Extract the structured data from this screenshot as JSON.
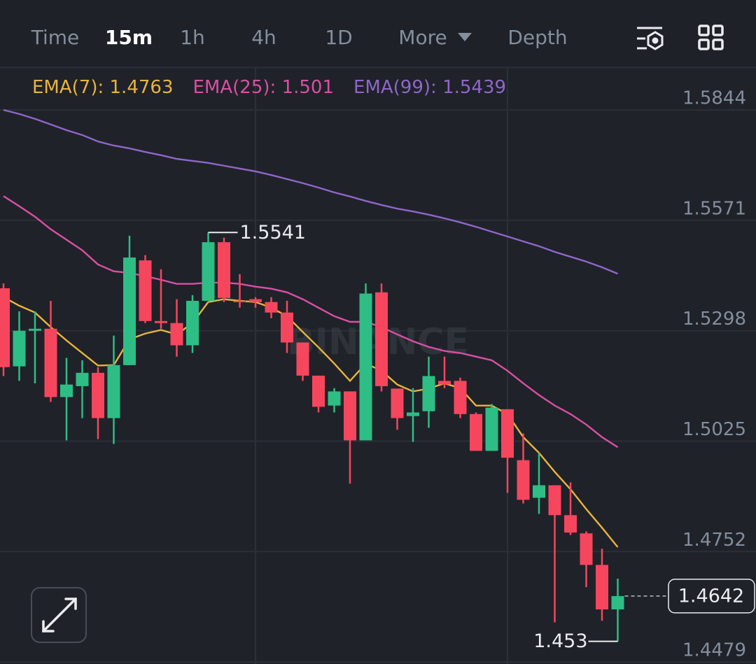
{
  "tabs": {
    "items": [
      "Time",
      "15m",
      "1h",
      "4h",
      "1D",
      "More",
      "Depth"
    ],
    "active": "15m"
  },
  "chart_data": {
    "type": "candlestick",
    "watermark": "BINANCE",
    "up_color": "#2ebd85",
    "down_color": "#f6465d",
    "grid": true,
    "ylim": [
      1.4474,
      1.5948
    ],
    "yticks": [
      1.5844,
      1.5571,
      1.5298,
      1.5025,
      1.4752,
      1.4479
    ],
    "open": [
      1.5403,
      1.521,
      1.5298,
      1.5303,
      1.5134,
      1.5161,
      1.5194,
      1.5082,
      1.5213,
      1.5472,
      1.5322,
      1.5317,
      1.5262,
      1.5372,
      1.5517,
      1.5372,
      1.5376,
      1.5369,
      1.5343,
      1.5269,
      1.5187,
      1.5113,
      1.5148,
      1.5027,
      1.5393,
      1.5155,
      1.5087,
      1.5099,
      1.5174,
      1.5174,
      1.5092,
      1.5001,
      1.5104,
      1.4978,
      1.4885,
      1.4916,
      1.4842,
      1.4797,
      1.4719,
      1.4609
    ],
    "high": [
      1.5415,
      1.5346,
      1.5346,
      1.5372,
      1.5231,
      1.5225,
      1.5208,
      1.5286,
      1.5533,
      1.5485,
      1.545,
      1.5376,
      1.5386,
      1.5541,
      1.5528,
      1.5438,
      1.5381,
      1.5381,
      1.5372,
      1.5269,
      1.5187,
      1.5156,
      1.5148,
      1.5415,
      1.5415,
      1.5155,
      1.5156,
      1.5234,
      1.5234,
      1.5182,
      1.5096,
      1.5117,
      1.5104,
      1.5044,
      1.4996,
      1.4916,
      1.4923,
      1.4802,
      1.4759,
      1.4685
    ],
    "low": [
      1.5186,
      1.5174,
      1.5168,
      1.5122,
      1.5027,
      1.5082,
      1.503,
      1.5018,
      1.5213,
      1.5317,
      1.5303,
      1.5234,
      1.5243,
      1.5372,
      1.5369,
      1.5355,
      1.5355,
      1.5329,
      1.5243,
      1.5174,
      1.5096,
      1.5096,
      1.492,
      1.5027,
      1.5148,
      1.5053,
      1.5023,
      1.5058,
      1.5156,
      1.5082,
      1.5001,
      1.5001,
      1.4897,
      1.4871,
      1.4845,
      1.4577,
      1.4793,
      1.4664,
      1.4581,
      1.453
    ],
    "close": [
      1.5208,
      1.5298,
      1.5303,
      1.5134,
      1.5165,
      1.5194,
      1.5082,
      1.5213,
      1.5479,
      1.5322,
      1.5317,
      1.5262,
      1.5372,
      1.5517,
      1.5379,
      1.5369,
      1.5369,
      1.5343,
      1.5269,
      1.5187,
      1.511,
      1.5148,
      1.5027,
      1.539,
      1.5161,
      1.5082,
      1.5096,
      1.5186,
      1.5165,
      1.5092,
      1.5001,
      1.5108,
      1.4984,
      1.488,
      1.4916,
      1.4842,
      1.4799,
      1.4719,
      1.4609,
      1.4642
    ],
    "series": [
      {
        "name": "EMA(7)",
        "color": "#e9b43c",
        "values": [
          1.5381,
          1.536,
          1.5343,
          1.5307,
          1.5274,
          1.5243,
          1.5212,
          1.5213,
          1.5277,
          1.5291,
          1.53,
          1.5289,
          1.5317,
          1.5369,
          1.5376,
          1.5372,
          1.5369,
          1.5355,
          1.5334,
          1.5295,
          1.5257,
          1.5217,
          1.5174,
          1.5217,
          1.5199,
          1.5165,
          1.5148,
          1.5155,
          1.5168,
          1.5156,
          1.5113,
          1.5113,
          1.5092,
          1.5035,
          1.4996,
          1.4949,
          1.4906,
          1.4857,
          1.4811,
          1.4763
        ]
      },
      {
        "name": "EMA(25)",
        "color": "#d94fa3",
        "values": [
          1.5631,
          1.5606,
          1.558,
          1.5549,
          1.5523,
          1.5497,
          1.5462,
          1.5445,
          1.5441,
          1.5433,
          1.5424,
          1.5414,
          1.5414,
          1.5417,
          1.5417,
          1.5414,
          1.5407,
          1.5402,
          1.5393,
          1.5376,
          1.5355,
          1.5334,
          1.532,
          1.532,
          1.5307,
          1.5289,
          1.5272,
          1.5258,
          1.5248,
          1.5243,
          1.5234,
          1.5225,
          1.5199,
          1.5168,
          1.5139,
          1.5113,
          1.5092,
          1.5066,
          1.5035,
          1.501
        ]
      },
      {
        "name": "EMA(99)",
        "color": "#8f66c9",
        "values": [
          1.5844,
          1.5834,
          1.5822,
          1.5808,
          1.5794,
          1.5782,
          1.5766,
          1.5756,
          1.5749,
          1.574,
          1.5732,
          1.5723,
          1.5718,
          1.5713,
          1.5706,
          1.5699,
          1.5692,
          1.5683,
          1.5673,
          1.5663,
          1.5652,
          1.564,
          1.563,
          1.5619,
          1.5609,
          1.56,
          1.5593,
          1.5585,
          1.5576,
          1.5566,
          1.5555,
          1.5543,
          1.5531,
          1.5519,
          1.5507,
          1.5493,
          1.5481,
          1.5469,
          1.5455,
          1.5439
        ]
      }
    ]
  }
}
